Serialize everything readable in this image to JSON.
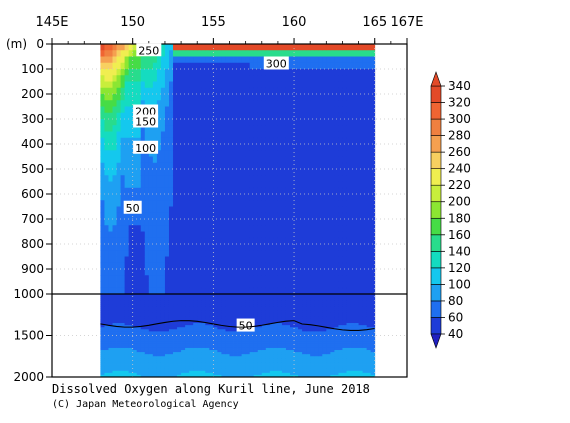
{
  "chart_data": {
    "type": "heatmap",
    "title": "Dissolved Oxygen along Kuril line, June 2018",
    "credit": "(C) Japan Meteorological Agency",
    "y_unit_label": "(m)",
    "x_tick_labels": [
      "145E",
      "150",
      "155",
      "160",
      "165",
      "167E"
    ],
    "x_ticks": [
      145,
      150,
      155,
      160,
      165,
      167
    ],
    "xlim": [
      145,
      167
    ],
    "data_extent_lon": [
      148,
      165
    ],
    "y_tick_labels_upper": [
      "0",
      "100",
      "200",
      "300",
      "400",
      "500",
      "600",
      "700",
      "800",
      "900",
      "1000"
    ],
    "y_ticks_upper": [
      0,
      100,
      200,
      300,
      400,
      500,
      600,
      700,
      800,
      900,
      1000
    ],
    "y_tick_labels_lower": [
      "1500",
      "2000"
    ],
    "y_ticks_lower": [
      1500,
      2000
    ],
    "ylim_upper": [
      0,
      1000
    ],
    "ylim_lower": [
      1000,
      2000
    ],
    "grid": "dotted",
    "colorbar": {
      "levels": [
        40,
        60,
        80,
        100,
        120,
        140,
        160,
        180,
        200,
        220,
        240,
        260,
        280,
        300,
        320,
        340
      ],
      "labels": [
        "40",
        "60",
        "80",
        "100",
        "120",
        "140",
        "160",
        "180",
        "200",
        "220",
        "240",
        "260",
        "280",
        "300",
        "320",
        "340"
      ],
      "colors": [
        "#1e3cd8",
        "#1f6ff0",
        "#1ea0f2",
        "#14c8ee",
        "#14dcc0",
        "#28dc8c",
        "#46dc46",
        "#8ce632",
        "#c8ee3c",
        "#f0ee50",
        "#f8d060",
        "#f5a050",
        "#f08040",
        "#f06432",
        "#e34a28"
      ],
      "under_color": "#2020c0"
    },
    "contour_labels": [
      {
        "text": "250",
        "lon": 151.0,
        "depth": 25
      },
      {
        "text": "300",
        "lon": 158.9,
        "depth": 78
      },
      {
        "text": "200",
        "lon": 150.8,
        "depth": 270
      },
      {
        "text": "150",
        "lon": 150.8,
        "depth": 310
      },
      {
        "text": "100",
        "lon": 150.8,
        "depth": 415
      },
      {
        "text": "50",
        "lon": 150.0,
        "depth": 655
      },
      {
        "text": "50",
        "lon": 157.0,
        "depth": 1380
      }
    ]
  }
}
